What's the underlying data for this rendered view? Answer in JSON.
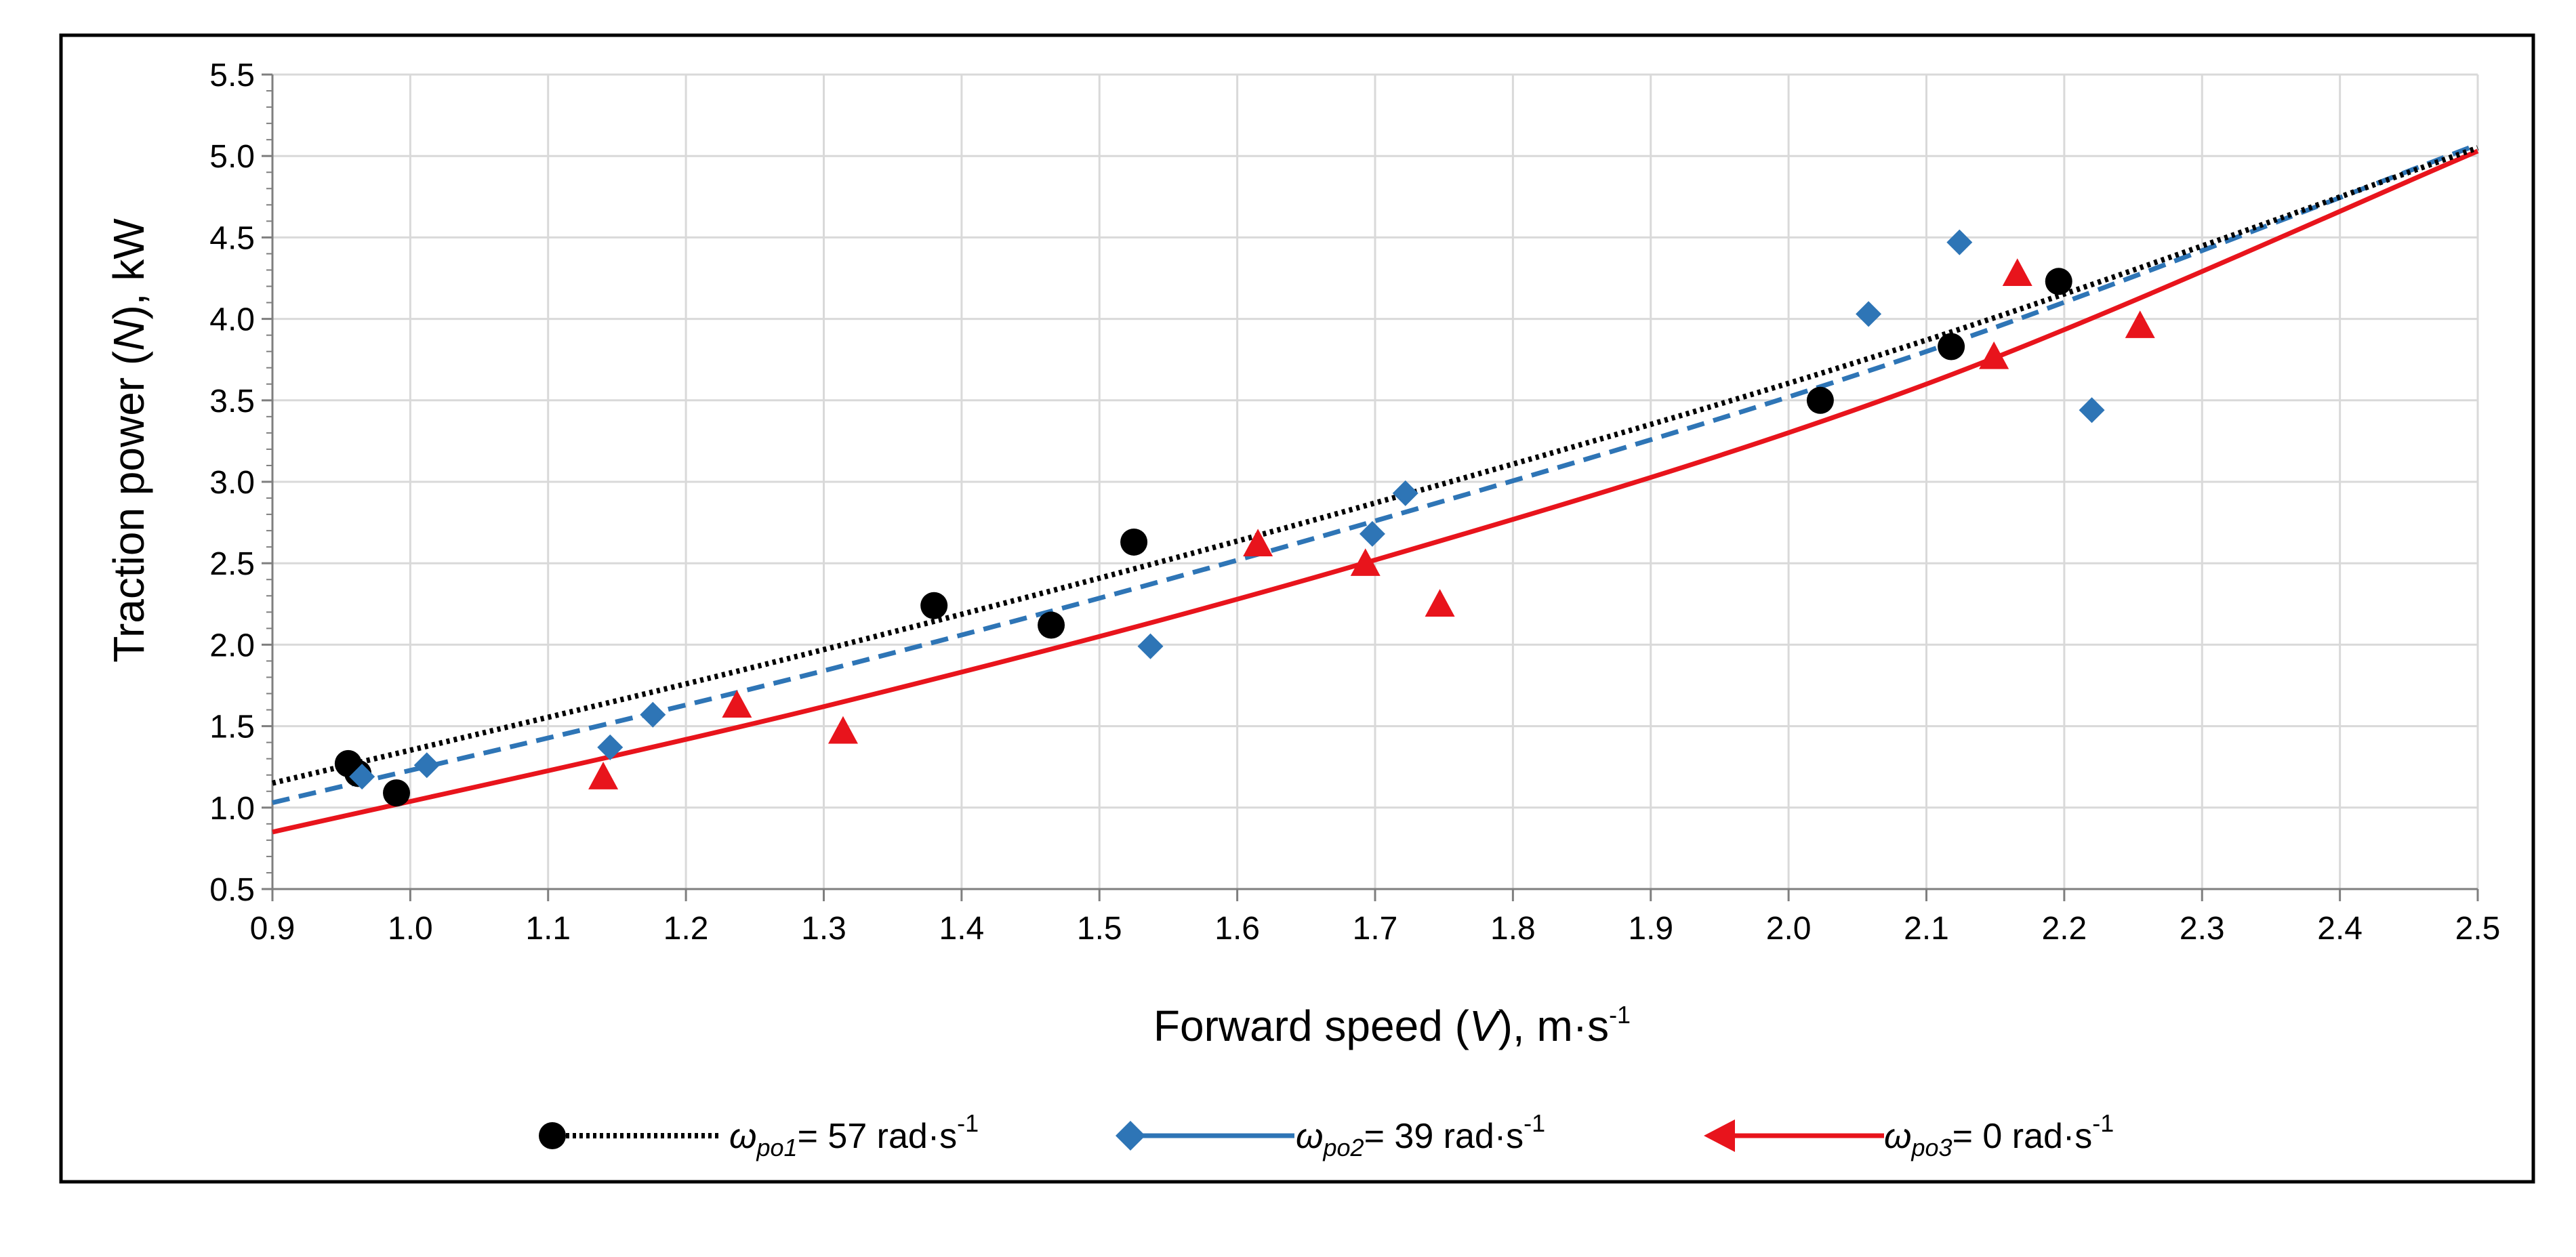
{
  "chart_data": {
    "type": "scatter",
    "title": "",
    "xlabel": {
      "before": "Forward speed (",
      "var": "V",
      "after": "), m·s",
      "sup": "-1"
    },
    "ylabel": {
      "before": "Traction power (",
      "var": "N",
      "after": "), kW"
    },
    "xlim": [
      0.9,
      2.5
    ],
    "ylim": [
      0.5,
      5.5
    ],
    "xticks": [
      0.9,
      1.0,
      1.1,
      1.2,
      1.3,
      1.4,
      1.5,
      1.6,
      1.7,
      1.8,
      1.9,
      2.0,
      2.1,
      2.2,
      2.3,
      2.4,
      2.5
    ],
    "yticks": [
      0.5,
      1.0,
      1.5,
      2.0,
      2.5,
      3.0,
      3.5,
      4.0,
      4.5,
      5.0,
      5.5
    ],
    "xtick_labels": [
      "0.9",
      "1.0",
      "1.1",
      "1.2",
      "1.3",
      "1.4",
      "1.5",
      "1.6",
      "1.7",
      "1.8",
      "1.9",
      "2.0",
      "2.1",
      "2.2",
      "2.3",
      "2.4",
      "2.5"
    ],
    "ytick_labels": [
      "0.5",
      "1.0",
      "1.5",
      "2.0",
      "2.5",
      "3.0",
      "3.5",
      "4.0",
      "4.5",
      "5.0",
      "5.5"
    ],
    "grid": true,
    "legend_position": "bottom",
    "series": [
      {
        "name": "wpo1",
        "legend": {
          "symbol": "ω",
          "sub": "po1",
          "text": "= 57 rad·s",
          "sup": "-1"
        },
        "color": "#000000",
        "marker": "circle",
        "trend_style": "dotted",
        "points": [
          [
            0.955,
            1.27
          ],
          [
            0.962,
            1.21
          ],
          [
            0.99,
            1.09
          ],
          [
            1.38,
            2.24
          ],
          [
            1.465,
            2.12
          ],
          [
            1.525,
            2.63
          ],
          [
            2.023,
            3.5
          ],
          [
            2.118,
            3.83
          ],
          [
            2.196,
            4.23
          ]
        ],
        "trend": [
          [
            0.9,
            1.15
          ],
          [
            1.3,
            1.97
          ],
          [
            1.7,
            2.87
          ],
          [
            2.1,
            3.87
          ],
          [
            2.5,
            5.05
          ]
        ]
      },
      {
        "name": "wpo2",
        "legend": {
          "symbol": "ω",
          "sub": "po2",
          "text": "= 39 rad·s",
          "sup": "-1"
        },
        "color": "#2E75B6",
        "marker": "diamond",
        "trend_style": "dashed",
        "points": [
          [
            0.965,
            1.19
          ],
          [
            1.012,
            1.26
          ],
          [
            1.145,
            1.37
          ],
          [
            1.176,
            1.57
          ],
          [
            1.537,
            1.99
          ],
          [
            1.698,
            2.68
          ],
          [
            1.722,
            2.93
          ],
          [
            2.058,
            4.03
          ],
          [
            2.124,
            4.47
          ],
          [
            2.22,
            3.44
          ]
        ],
        "trend": [
          [
            0.9,
            1.03
          ],
          [
            1.3,
            1.84
          ],
          [
            1.7,
            2.76
          ],
          [
            2.1,
            3.8
          ],
          [
            2.5,
            5.07
          ]
        ]
      },
      {
        "name": "wpo3",
        "legend": {
          "symbol": "ω",
          "sub": "po3",
          "text": "= 0 rad·s",
          "sup": "-1"
        },
        "color": "#E8141C",
        "marker": "triangle",
        "trend_style": "solid",
        "points": [
          [
            1.14,
            1.19
          ],
          [
            1.237,
            1.63
          ],
          [
            1.314,
            1.47
          ],
          [
            1.615,
            2.62
          ],
          [
            1.693,
            2.5
          ],
          [
            1.747,
            2.25
          ],
          [
            2.149,
            3.77
          ],
          [
            2.166,
            4.28
          ],
          [
            2.255,
            3.96
          ]
        ],
        "trend": [
          [
            0.9,
            0.85
          ],
          [
            1.3,
            1.62
          ],
          [
            1.7,
            2.52
          ],
          [
            2.1,
            3.6
          ],
          [
            2.5,
            5.03
          ]
        ]
      }
    ]
  }
}
